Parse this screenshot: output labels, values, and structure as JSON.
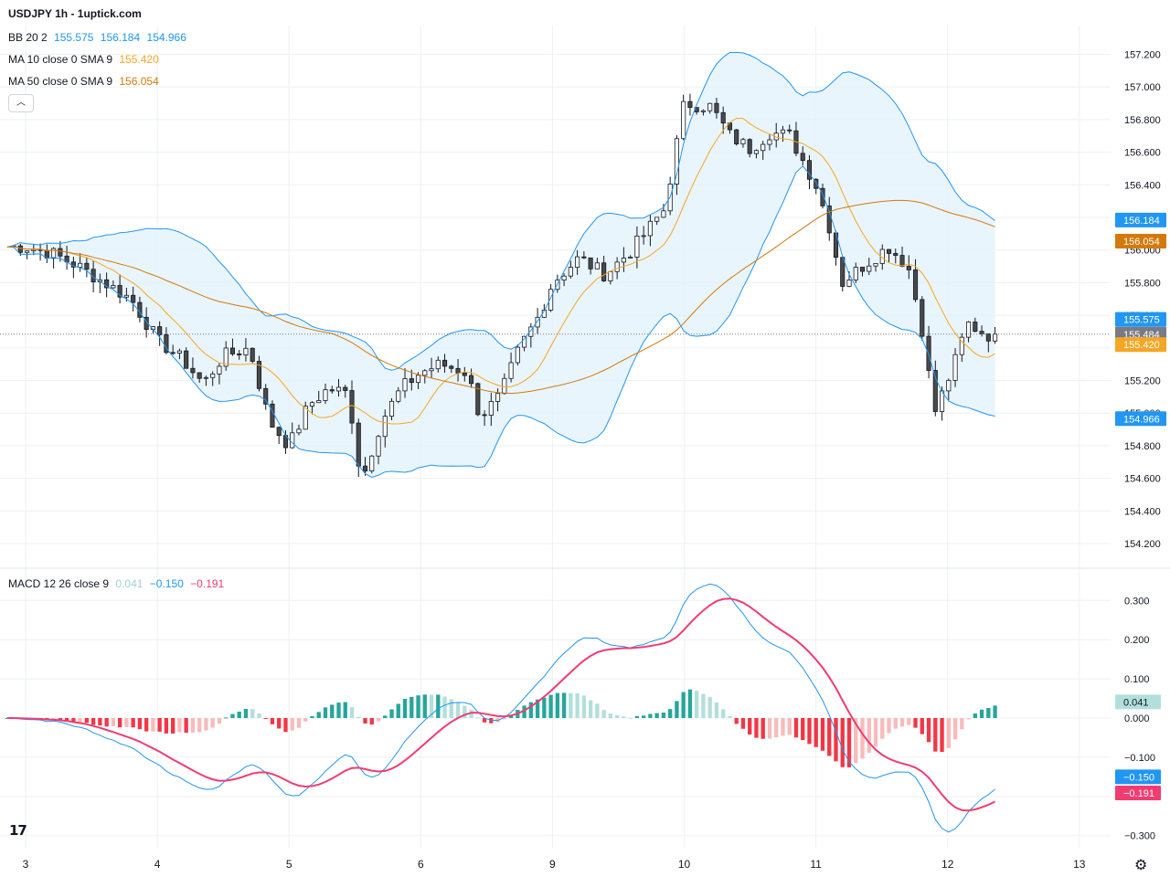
{
  "header": {
    "title": "USDJPY 1h - 1uptick.com"
  },
  "legends": {
    "bb": {
      "label": "BB 20 2",
      "basis": "155.575",
      "upper": "156.184",
      "lower": "154.966"
    },
    "ma10": {
      "label": "MA 10 close 0 SMA 9",
      "value": "155.420"
    },
    "ma50": {
      "label": "MA 50 close 0 SMA 9",
      "value": "156.054"
    },
    "macd": {
      "label": "MACD 12 26 close 9",
      "hist": "0.041",
      "macd": "−0.150",
      "signal": "−0.191"
    }
  },
  "colors": {
    "up_candle": "#ffffff",
    "down_candle": "#4a4a4a",
    "wick": "#131722",
    "bb_line": "#2196f3",
    "bb_fill": "#e3f2fd",
    "ma10": "#f5a623",
    "ma50": "#d4790b",
    "macd_line": "#2196f3",
    "signal_line": "#f23b72",
    "hist_pos_strong": "#26a69a",
    "hist_pos_weak": "#b2dfdb",
    "hist_neg_strong": "#f23645",
    "hist_neg_weak": "#f8bbbb",
    "grid": "#eef0f3",
    "axis_text": "#131722",
    "last_price_bg": "#787b86"
  },
  "icons": {
    "logo": "tradingview-logo-icon",
    "settings": "gear-icon",
    "collapse": "chevron-up-icon"
  },
  "chart_data": [
    {
      "type": "candlestick",
      "title": "USDJPY 1h - 1uptick.com",
      "x_ticks": [
        "3",
        "4",
        "5",
        "6",
        "9",
        "10",
        "11",
        "12",
        "13"
      ],
      "ylim": [
        154.2,
        157.4
      ],
      "y_ticks": [
        "154.200",
        "154.400",
        "154.600",
        "154.800",
        "155.000",
        "155.200",
        "155.400",
        "155.600",
        "155.800",
        "156.000",
        "156.200",
        "156.400",
        "156.600",
        "156.800",
        "157.000",
        "157.200"
      ],
      "grid": true,
      "close_waypoints": [
        {
          "day": 3.0,
          "close": 156.02
        },
        {
          "day": 3.2,
          "close": 155.98
        },
        {
          "day": 3.4,
          "close": 155.9
        },
        {
          "day": 3.6,
          "close": 155.8
        },
        {
          "day": 3.8,
          "close": 155.7
        },
        {
          "day": 4.0,
          "close": 155.45
        },
        {
          "day": 4.2,
          "close": 155.32
        },
        {
          "day": 4.35,
          "close": 155.18
        },
        {
          "day": 4.5,
          "close": 155.35
        },
        {
          "day": 4.7,
          "close": 155.4
        },
        {
          "day": 4.85,
          "close": 154.95
        },
        {
          "day": 5.0,
          "close": 154.8
        },
        {
          "day": 5.15,
          "close": 155.05
        },
        {
          "day": 5.3,
          "close": 155.15
        },
        {
          "day": 5.45,
          "close": 155.12
        },
        {
          "day": 5.55,
          "close": 154.58
        },
        {
          "day": 5.7,
          "close": 154.95
        },
        {
          "day": 5.85,
          "close": 155.15
        },
        {
          "day": 6.0,
          "close": 155.25
        },
        {
          "day": 6.15,
          "close": 155.3
        },
        {
          "day": 6.35,
          "close": 155.25
        },
        {
          "day": 6.45,
          "close": 154.98
        },
        {
          "day": 6.6,
          "close": 155.1
        },
        {
          "day": 6.75,
          "close": 155.4
        },
        {
          "day": 6.9,
          "close": 155.6
        },
        {
          "day": 7.0,
          "close": 155.8
        },
        {
          "day": 7.2,
          "close": 155.95
        },
        {
          "day": 7.4,
          "close": 155.85
        },
        {
          "day": 7.6,
          "close": 156.0
        },
        {
          "day": 7.85,
          "close": 156.25
        },
        {
          "day": 8.0,
          "close": 156.9
        },
        {
          "day": 8.2,
          "close": 156.88
        },
        {
          "day": 8.35,
          "close": 156.7
        },
        {
          "day": 8.5,
          "close": 156.62
        },
        {
          "day": 8.65,
          "close": 156.72
        },
        {
          "day": 8.8,
          "close": 156.7
        },
        {
          "day": 8.9,
          "close": 156.55
        },
        {
          "day": 9.0,
          "close": 156.4
        },
        {
          "day": 9.1,
          "close": 156.15
        },
        {
          "day": 9.2,
          "close": 155.8
        },
        {
          "day": 9.35,
          "close": 155.9
        },
        {
          "day": 9.55,
          "close": 156.02
        },
        {
          "day": 9.7,
          "close": 155.9
        },
        {
          "day": 9.8,
          "close": 155.55
        },
        {
          "day": 9.9,
          "close": 155.0
        },
        {
          "day": 10.05,
          "close": 155.3
        },
        {
          "day": 10.15,
          "close": 155.55
        },
        {
          "day": 10.3,
          "close": 155.48
        }
      ],
      "indicators": {
        "bb": {
          "length": 20,
          "mult": 2,
          "last_basis": 155.575,
          "last_upper": 156.184,
          "last_lower": 154.966
        },
        "ma10": {
          "length": 10,
          "last": 155.42
        },
        "ma50": {
          "length": 50,
          "last": 156.054
        }
      },
      "price_labels": [
        {
          "name": "bb-upper",
          "value": "156.184",
          "color": "#2196f3"
        },
        {
          "name": "ma50",
          "value": "156.054",
          "color": "#d4790b"
        },
        {
          "name": "bb-basis",
          "value": "155.575",
          "color": "#2196f3"
        },
        {
          "name": "last-price",
          "value": "155.484",
          "color": "#787b86"
        },
        {
          "name": "ma10",
          "value": "155.420",
          "color": "#f5a623"
        },
        {
          "name": "bb-lower",
          "value": "154.966",
          "color": "#2196f3"
        }
      ]
    },
    {
      "type": "macd",
      "title": "MACD 12 26 close 9",
      "ylim": [
        -0.33,
        0.33
      ],
      "y_ticks": [
        "0.300",
        "0.200",
        "0.100",
        "0.000",
        "−0.100",
        "−0.200",
        "−0.300"
      ],
      "last": {
        "histogram": 0.041,
        "macd": -0.15,
        "signal": -0.191
      },
      "price_labels": [
        {
          "name": "histogram",
          "value": "0.041",
          "color": "#b2dfdb"
        },
        {
          "name": "macd",
          "value": "−0.150",
          "color": "#2196f3"
        },
        {
          "name": "signal",
          "value": "−0.191",
          "color": "#f23b72"
        }
      ]
    }
  ]
}
